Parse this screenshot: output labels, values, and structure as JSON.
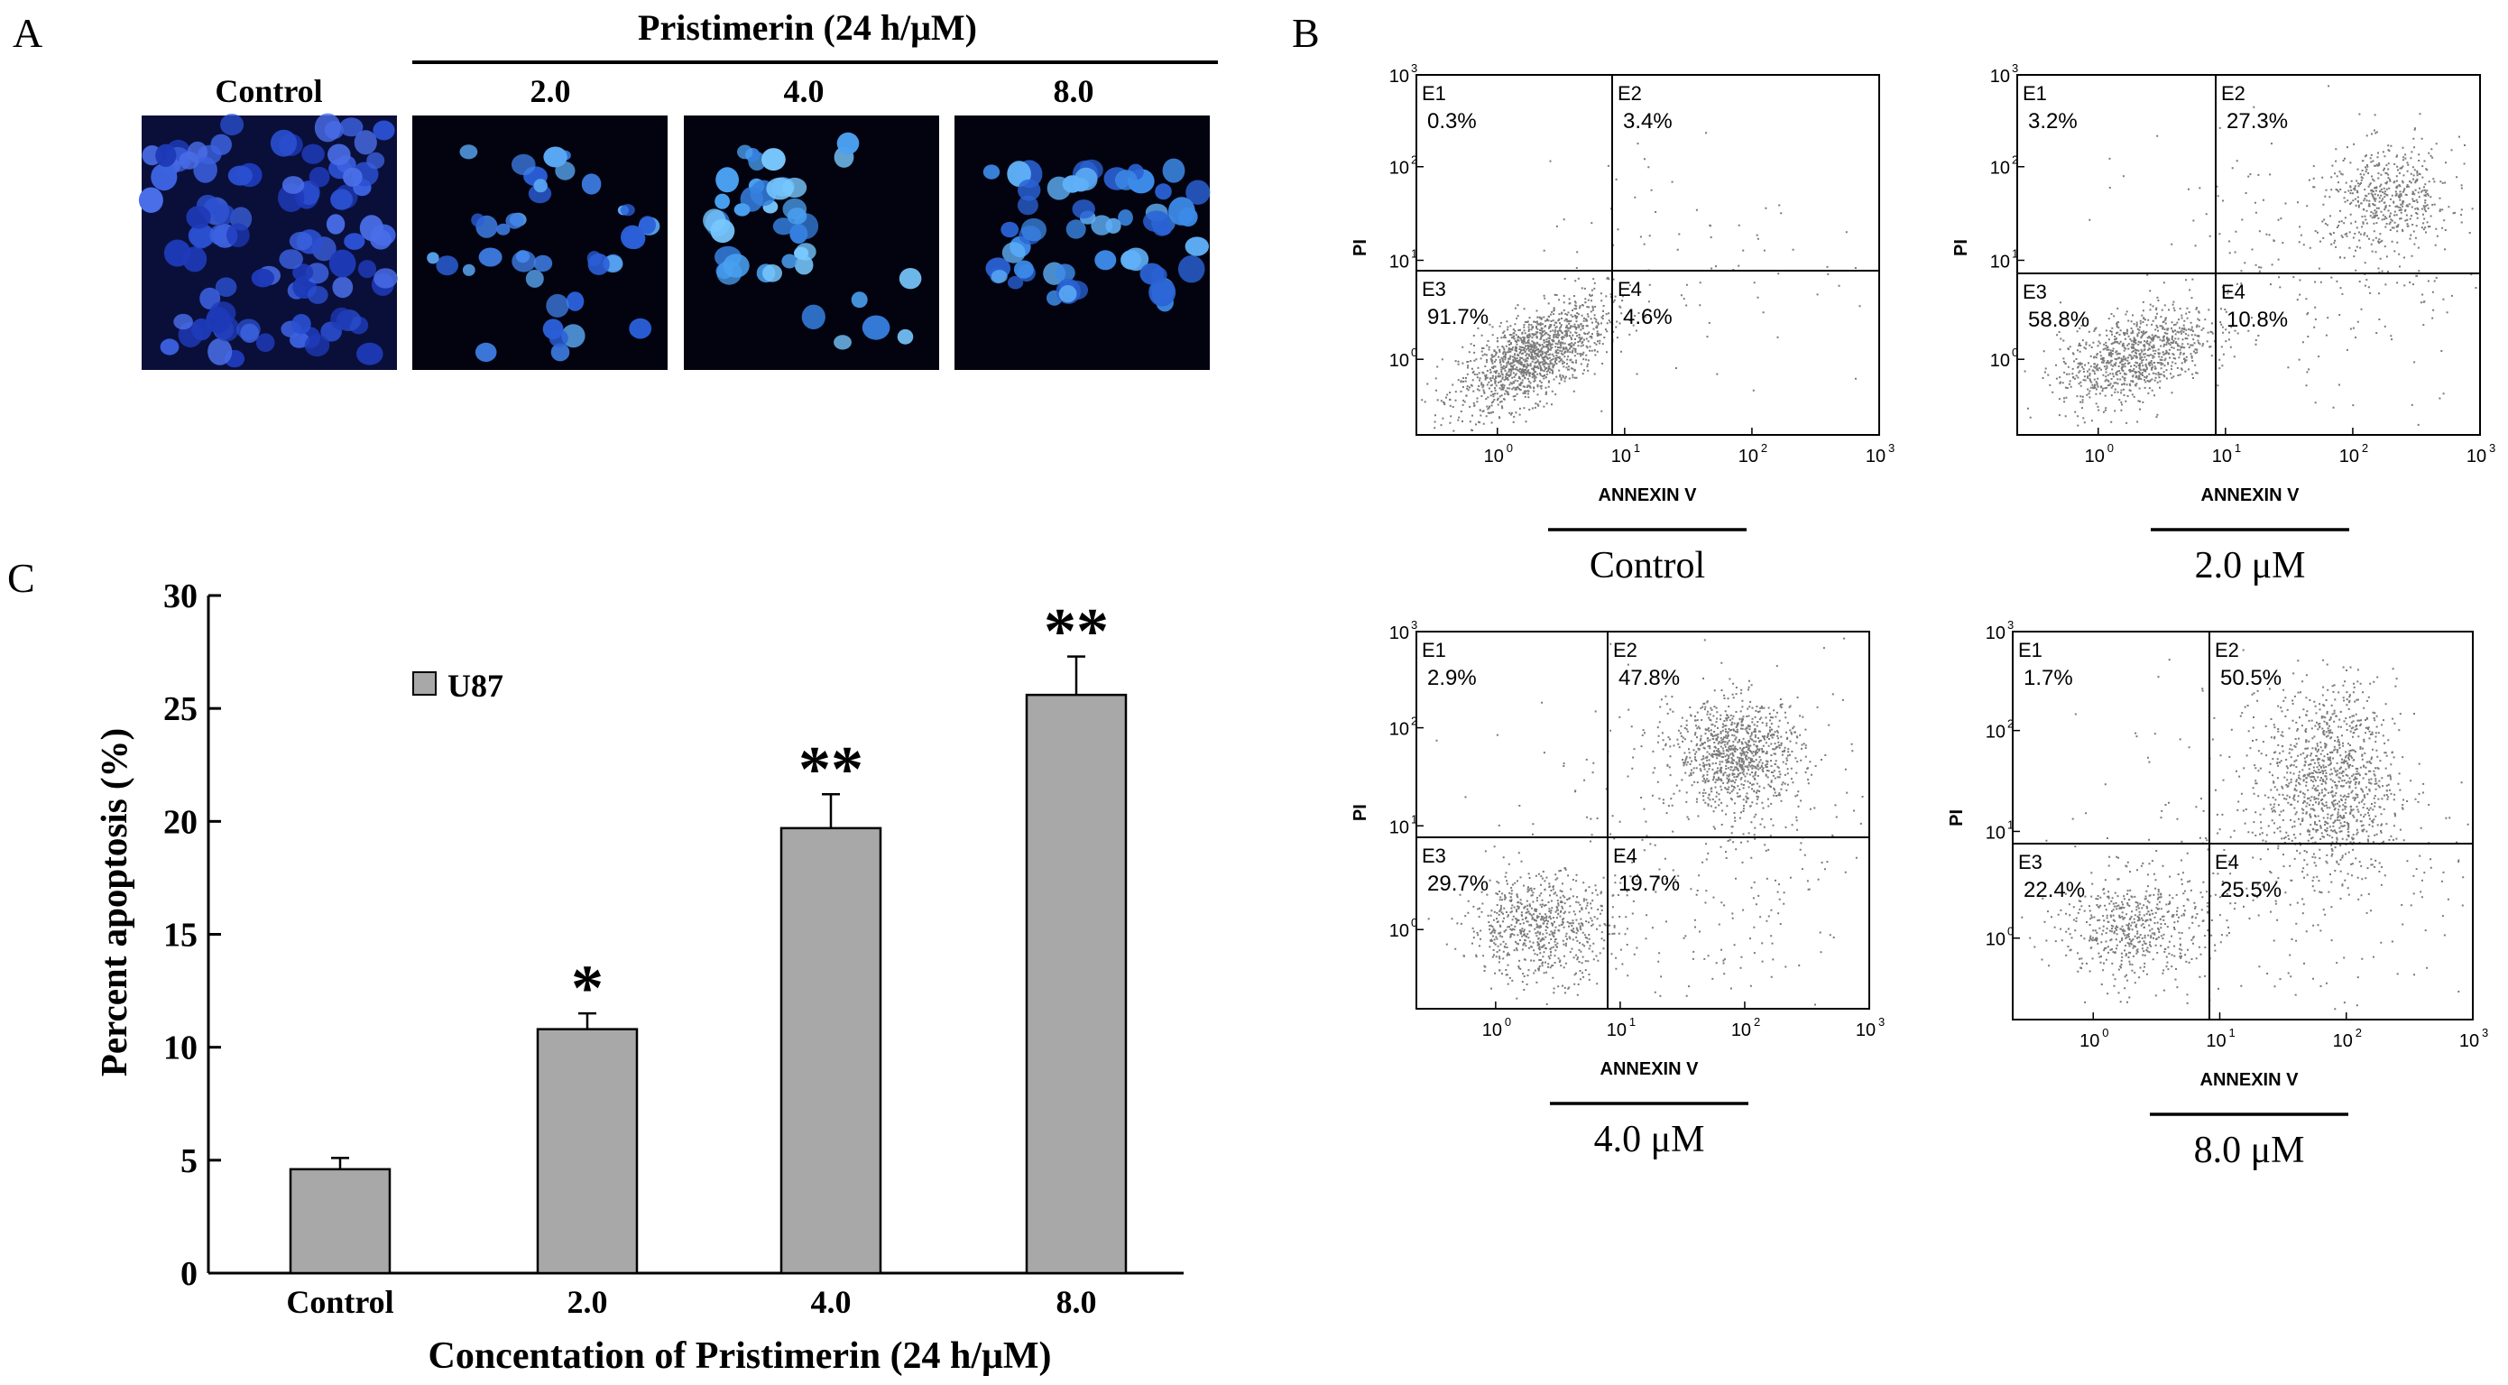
{
  "panel_a": {
    "letter": "A",
    "header": "Pristimerin (24 h/μM)",
    "images": [
      {
        "label": "Control",
        "cells": "dense"
      },
      {
        "label": "2.0",
        "cells": "medium"
      },
      {
        "label": "4.0",
        "cells": "bright"
      },
      {
        "label": "8.0",
        "cells": "clustered"
      }
    ]
  },
  "panel_b": {
    "letter": "B",
    "x_axis_label": "ANNEXIN V",
    "y_axis_label": "PI",
    "x_ticks": [
      "10",
      "10",
      "10",
      "10"
    ],
    "x_tick_exps": [
      "0",
      "1",
      "2",
      "3"
    ],
    "y_ticks": [
      "10",
      "10",
      "10",
      "10"
    ],
    "y_tick_exps": [
      "0",
      "1",
      "2",
      "3"
    ],
    "plots": [
      {
        "caption": "Control",
        "q": [
          {
            "id": "E1",
            "pct": "0.3%"
          },
          {
            "id": "E2",
            "pct": "3.4%"
          },
          {
            "id": "E3",
            "pct": "91.7%"
          },
          {
            "id": "E4",
            "pct": "4.6%"
          }
        ]
      },
      {
        "caption": "2.0 μM",
        "q": [
          {
            "id": "E1",
            "pct": "3.2%"
          },
          {
            "id": "E2",
            "pct": "27.3%"
          },
          {
            "id": "E3",
            "pct": "58.8%"
          },
          {
            "id": "E4",
            "pct": "10.8%"
          }
        ]
      },
      {
        "caption": "4.0 μM",
        "q": [
          {
            "id": "E1",
            "pct": "2.9%"
          },
          {
            "id": "E2",
            "pct": "47.8%"
          },
          {
            "id": "E3",
            "pct": "29.7%"
          },
          {
            "id": "E4",
            "pct": "19.7%"
          }
        ]
      },
      {
        "caption": "8.0 μM",
        "q": [
          {
            "id": "E1",
            "pct": "1.7%"
          },
          {
            "id": "E2",
            "pct": "50.5%"
          },
          {
            "id": "E3",
            "pct": "22.4%"
          },
          {
            "id": "E4",
            "pct": "25.5%"
          }
        ]
      }
    ]
  },
  "panel_c": {
    "letter": "C"
  },
  "chart_data": {
    "type": "bar",
    "categories": [
      "Control",
      "2.0",
      "4.0",
      "8.0"
    ],
    "series": [
      {
        "name": "U87",
        "values": [
          4.6,
          10.8,
          19.7,
          25.6
        ],
        "errors": [
          0.5,
          0.7,
          1.5,
          1.7
        ],
        "color": "#a8a8a8"
      }
    ],
    "significance": [
      "",
      "*",
      "**",
      "**"
    ],
    "xlabel": "Concentation of Pristimerin (24 h/μM)",
    "ylabel": "Percent apoptosis (%)",
    "ylim": [
      0,
      30
    ],
    "yticks": [
      "0",
      "5",
      "10",
      "15",
      "20",
      "25",
      "30"
    ],
    "legend_position": "top-left",
    "grid": false
  }
}
